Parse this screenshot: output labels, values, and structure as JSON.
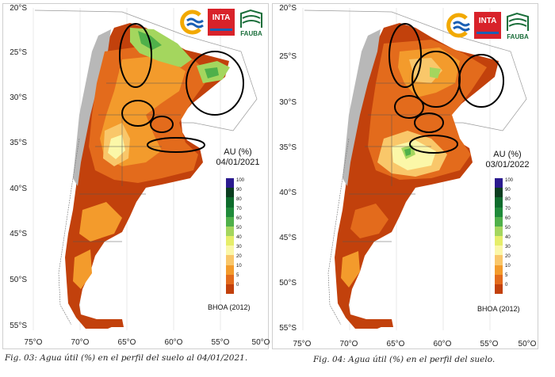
{
  "figures": [
    {
      "id": "fig03",
      "legend_title": "AU (%)",
      "date": "04/01/2021",
      "source": "BHOA (2012)",
      "caption": "Fig. 03: Agua útil (%) en el perfil del suelo al 04/01/2021."
    },
    {
      "id": "fig04",
      "legend_title": "AU (%)",
      "date": "03/01/2022",
      "source": "BHOA (2012)",
      "caption": "Fig. 04: Agua útil (%) en el perfil del suelo."
    }
  ],
  "axes": {
    "lat_labels": [
      "20°S",
      "25°S",
      "30°S",
      "35°S",
      "40°S",
      "45°S",
      "50°S",
      "55°S"
    ],
    "lon_labels": [
      "75°O",
      "70°O",
      "65°O",
      "60°O",
      "55°O",
      "50°O"
    ]
  },
  "legend": {
    "values": [
      "100",
      "90",
      "80",
      "70",
      "60",
      "50",
      "40",
      "30",
      "20",
      "10",
      "5",
      "0"
    ],
    "colors": [
      "#2b1b8f",
      "#0b3d1f",
      "#0e6b2c",
      "#1f8a3a",
      "#4fb04a",
      "#a4d65e",
      "#e6ee6a",
      "#fbf7a8",
      "#f9c76a",
      "#f39b2c",
      "#e36b1c",
      "#c2410c"
    ]
  },
  "logos": {
    "inta": "INTA",
    "fauba": "FAUBA"
  },
  "map_colors": {
    "land_grey": "#b8b8b8",
    "very_dry": "#c2410c",
    "dry": "#e36b1c",
    "mid_dry": "#f39b2c",
    "moderate": "#f9c76a",
    "light": "#fbf7a8",
    "greenish": "#a4d65e",
    "green": "#4fb04a"
  }
}
